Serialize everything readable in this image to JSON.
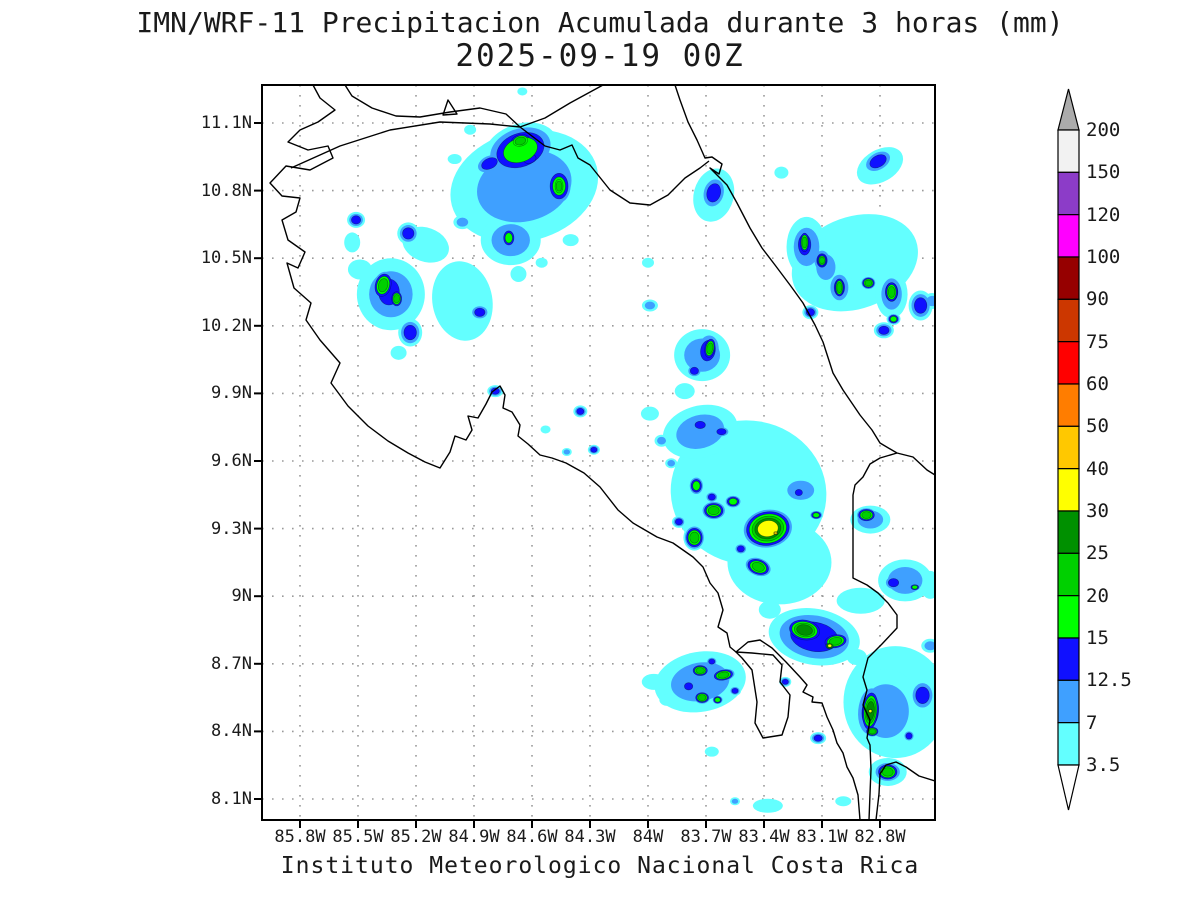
{
  "title": {
    "line1": "IMN/WRF-11 Precipitacion Acumulada durante 3 horas (mm)",
    "line2": "2025-09-19 00Z"
  },
  "footer": "Instituto Meteorologico Nacional Costa Rica",
  "axes": {
    "lat_ticks": [
      "11.1N",
      "10.8N",
      "10.5N",
      "10.2N",
      "9.9N",
      "9.6N",
      "9.3N",
      "9N",
      "8.7N",
      "8.4N",
      "8.1N"
    ],
    "lon_ticks": [
      "85.8W",
      "85.5W",
      "85.2W",
      "84.9W",
      "84.6W",
      "84.3W",
      "84W",
      "83.7W",
      "83.4W",
      "83.1W",
      "82.8W"
    ]
  },
  "colorbar": {
    "labels_top_to_bottom": [
      "200",
      "150",
      "120",
      "100",
      "90",
      "75",
      "60",
      "50",
      "40",
      "30",
      "25",
      "20",
      "15",
      "12.5",
      "7",
      "3.5"
    ],
    "box_colors_top_to_bottom": [
      "#F2F2F2",
      "#8C3CC8",
      "#FF00FF",
      "#960000",
      "#CC3700",
      "#FF0000",
      "#FF7D00",
      "#FFC800",
      "#FFFF00",
      "#009000",
      "#00D000",
      "#00FF00",
      "#1010FF",
      "#3FA0FF",
      "#63FFFF"
    ],
    "arrow_top_color": "#ABABAB",
    "arrow_bottom_color": "#FFFFFF"
  },
  "chart_data": {
    "type": "heatmap",
    "title": "IMN/WRF-11 Precipitacion Acumulada durante 3 horas (mm)",
    "subtitle": "2025-09-19 00Z",
    "units": "mm per 3 h",
    "region": "Costa Rica",
    "lon_axis_deg_west": [
      85.8,
      82.8
    ],
    "lat_axis_deg_north": [
      8.1,
      11.1
    ],
    "grid": true,
    "legend_position": "right",
    "legend_levels_mm": [
      3.5,
      7,
      12.5,
      15,
      20,
      25,
      30,
      40,
      50,
      60,
      75,
      90,
      100,
      120,
      150,
      200
    ],
    "level_colors": {
      "3.5": "#63FFFF",
      "7": "#3FA0FF",
      "12.5": "#1010FF",
      "15": "#00FF00",
      "20": "#00D000",
      "25": "#009000",
      "30": "#FFFF00",
      "40": "#FFC800",
      "50": "#FF7D00",
      "60": "#FF0000",
      "75": "#CC3700",
      "90": "#960000",
      "100": "#FF00FF",
      "120": "#8C3CC8",
      "150": "#F2F2F2"
    },
    "cells": [
      [
        84.64,
        10.82,
        7,
        75,
        55,
        -15
      ],
      [
        84.66,
        10.98,
        15,
        38,
        26,
        -20
      ],
      [
        84.66,
        11.02,
        20,
        13,
        9,
        -15
      ],
      [
        84.82,
        10.92,
        12.5,
        16,
        10,
        -25
      ],
      [
        84.61,
        10.94,
        12.5,
        12,
        8,
        -20
      ],
      [
        84.46,
        10.82,
        15,
        14,
        20,
        0
      ],
      [
        84.46,
        10.82,
        20,
        7,
        12,
        0
      ],
      [
        84.71,
        10.58,
        7,
        30,
        25,
        0
      ],
      [
        84.72,
        10.59,
        15,
        8,
        11,
        0
      ],
      [
        84.96,
        10.31,
        3.5,
        40,
        30,
        80
      ],
      [
        85.15,
        10.56,
        3.5,
        24,
        17,
        20
      ],
      [
        85.24,
        10.61,
        12.5,
        11,
        11,
        0
      ],
      [
        84.96,
        10.66,
        7,
        9,
        7,
        0
      ],
      [
        84.4,
        10.58,
        3.5,
        8,
        6,
        0
      ],
      [
        84.67,
        10.43,
        3.5,
        8,
        8,
        0
      ],
      [
        84.55,
        10.48,
        3.5,
        6,
        5,
        0
      ],
      [
        85.0,
        10.94,
        3.5,
        7,
        5,
        0
      ],
      [
        84.92,
        11.07,
        3.5,
        6,
        5,
        0
      ],
      [
        83.31,
        10.88,
        3.5,
        7,
        6,
        0
      ],
      [
        84.65,
        11.24,
        3.5,
        5,
        4,
        0
      ],
      [
        85.33,
        10.34,
        7,
        34,
        36,
        0
      ],
      [
        85.34,
        10.35,
        12.5,
        20,
        25,
        0
      ],
      [
        85.37,
        10.38,
        20,
        11,
        16,
        15
      ],
      [
        85.3,
        10.32,
        20,
        7,
        10,
        0
      ],
      [
        85.49,
        10.45,
        3.5,
        12,
        10,
        0
      ],
      [
        85.23,
        10.17,
        12.5,
        12,
        14,
        0
      ],
      [
        85.29,
        10.08,
        3.5,
        8,
        7,
        0
      ],
      [
        85.51,
        10.67,
        12.5,
        9,
        8,
        0
      ],
      [
        85.53,
        10.57,
        3.5,
        8,
        10,
        0
      ],
      [
        84.87,
        10.26,
        12.5,
        10,
        8,
        0
      ],
      [
        84.79,
        9.91,
        12.5,
        8,
        6,
        0
      ],
      [
        83.66,
        10.79,
        12.5,
        13,
        18,
        15
      ],
      [
        83.66,
        10.78,
        3.5,
        20,
        27,
        15
      ],
      [
        82.81,
        10.93,
        12.5,
        17,
        11,
        -30
      ],
      [
        82.8,
        10.91,
        3.5,
        25,
        16,
        -30
      ],
      [
        82.93,
        10.48,
        3.5,
        65,
        46,
        -20
      ],
      [
        83.18,
        10.55,
        7,
        20,
        30,
        0
      ],
      [
        83.19,
        10.56,
        12.5,
        12,
        20,
        0
      ],
      [
        83.19,
        10.57,
        20,
        6,
        13,
        0
      ],
      [
        83.08,
        10.46,
        7,
        15,
        20,
        0
      ],
      [
        83.1,
        10.49,
        12.5,
        10,
        13,
        0
      ],
      [
        83.1,
        10.49,
        20,
        6,
        8,
        0
      ],
      [
        83.01,
        10.37,
        7,
        14,
        20,
        0
      ],
      [
        83.01,
        10.37,
        12.5,
        10,
        16,
        0
      ],
      [
        83.01,
        10.37,
        20,
        6,
        12,
        0
      ],
      [
        82.86,
        10.39,
        20,
        8,
        7,
        0
      ],
      [
        82.74,
        10.34,
        7,
        16,
        24,
        0
      ],
      [
        82.74,
        10.35,
        12.5,
        12,
        18,
        0
      ],
      [
        82.74,
        10.35,
        20,
        8,
        13,
        0
      ],
      [
        82.73,
        10.23,
        15,
        7,
        6,
        0
      ],
      [
        83.16,
        10.26,
        12.5,
        8,
        7,
        0
      ],
      [
        82.91,
        10.65,
        3.5,
        9,
        7,
        0
      ],
      [
        82.78,
        10.18,
        12.5,
        10,
        8,
        0
      ],
      [
        82.53,
        10.31,
        7,
        9,
        8,
        0
      ],
      [
        82.59,
        10.29,
        12.5,
        12,
        15,
        0
      ],
      [
        83.72,
        10.07,
        7,
        28,
        26,
        0
      ],
      [
        83.69,
        10.09,
        12.5,
        14,
        20,
        10
      ],
      [
        83.68,
        10.1,
        20,
        7,
        13,
        10
      ],
      [
        83.76,
        10.0,
        12.5,
        8,
        7,
        0
      ],
      [
        83.81,
        9.91,
        3.5,
        10,
        8,
        0
      ],
      [
        83.99,
        10.29,
        7,
        8,
        6,
        0
      ],
      [
        84.0,
        10.48,
        3.5,
        6,
        5,
        0
      ],
      [
        84.35,
        9.82,
        12.5,
        7,
        6,
        0
      ],
      [
        84.28,
        9.65,
        12.5,
        6,
        5,
        0
      ],
      [
        84.42,
        9.64,
        7,
        5,
        4,
        0
      ],
      [
        84.53,
        9.74,
        3.5,
        5,
        4,
        0
      ],
      [
        83.48,
        9.46,
        3.5,
        78,
        72,
        10
      ],
      [
        83.73,
        9.73,
        7,
        38,
        26,
        -15
      ],
      [
        83.73,
        9.76,
        12.5,
        10,
        7,
        0
      ],
      [
        83.62,
        9.73,
        12.5,
        9,
        6,
        0
      ],
      [
        83.38,
        9.3,
        30,
        27,
        21,
        -10
      ],
      [
        83.34,
        9.28,
        40,
        4,
        3,
        0
      ],
      [
        83.66,
        9.38,
        20,
        13,
        10,
        0
      ],
      [
        83.75,
        9.49,
        15,
        8,
        10,
        0
      ],
      [
        83.76,
        9.26,
        20,
        11,
        13,
        0
      ],
      [
        83.43,
        9.13,
        20,
        15,
        10,
        20
      ],
      [
        83.56,
        9.42,
        15,
        9,
        7,
        0
      ],
      [
        83.67,
        9.44,
        12.5,
        7,
        6,
        0
      ],
      [
        83.52,
        9.21,
        12.5,
        7,
        6,
        0
      ],
      [
        83.84,
        9.33,
        12.5,
        7,
        6,
        0
      ],
      [
        83.93,
        9.69,
        7,
        7,
        6,
        0
      ],
      [
        83.88,
        9.59,
        7,
        6,
        5,
        0
      ],
      [
        83.99,
        9.81,
        3.5,
        9,
        7,
        0
      ],
      [
        83.21,
        9.47,
        7,
        21,
        15,
        0
      ],
      [
        83.22,
        9.46,
        12.5,
        7,
        6,
        0
      ],
      [
        83.13,
        9.36,
        15,
        7,
        5,
        0
      ],
      [
        82.87,
        9.36,
        20,
        11,
        8,
        0
      ],
      [
        82.85,
        9.34,
        7,
        20,
        14,
        0
      ],
      [
        82.67,
        9.07,
        7,
        27,
        21,
        0
      ],
      [
        82.73,
        9.06,
        12.5,
        10,
        8,
        0
      ],
      [
        82.62,
        9.04,
        15,
        6,
        4,
        0
      ],
      [
        83.32,
        9.15,
        3.5,
        52,
        42,
        0
      ],
      [
        83.14,
        8.82,
        12.5,
        46,
        28,
        10
      ],
      [
        83.19,
        8.85,
        25,
        20,
        13,
        10
      ],
      [
        83.03,
        8.8,
        20,
        15,
        9,
        -10
      ],
      [
        83.06,
        8.78,
        30,
        5,
        4,
        0
      ],
      [
        83.37,
        8.94,
        3.5,
        11,
        9,
        0
      ],
      [
        82.92,
        8.73,
        3.5,
        10,
        8,
        0
      ],
      [
        83.73,
        8.62,
        7,
        46,
        30,
        -10
      ],
      [
        83.73,
        8.67,
        20,
        10,
        7,
        0
      ],
      [
        83.61,
        8.65,
        20,
        13,
        7,
        -10
      ],
      [
        83.72,
        8.55,
        20,
        9,
        7,
        0
      ],
      [
        83.64,
        8.54,
        15,
        6,
        5,
        0
      ],
      [
        83.79,
        8.6,
        12.5,
        8,
        7,
        0
      ],
      [
        83.55,
        8.58,
        12.5,
        6,
        5,
        0
      ],
      [
        83.67,
        8.71,
        12.5,
        6,
        5,
        0
      ],
      [
        83.97,
        8.62,
        3.5,
        12,
        8,
        0
      ],
      [
        83.9,
        8.54,
        3.5,
        8,
        6,
        0
      ],
      [
        83.29,
        8.62,
        12.5,
        6,
        5,
        0
      ],
      [
        83.12,
        8.37,
        12.5,
        8,
        6,
        0
      ],
      [
        83.67,
        8.31,
        3.5,
        7,
        5,
        0
      ],
      [
        82.72,
        8.53,
        3.5,
        52,
        56,
        0
      ],
      [
        82.77,
        8.49,
        7,
        36,
        42,
        0
      ],
      [
        82.85,
        8.49,
        12.5,
        16,
        30,
        5
      ],
      [
        82.85,
        8.49,
        25,
        10,
        24,
        5
      ],
      [
        82.85,
        8.49,
        30,
        4,
        4,
        0
      ],
      [
        82.84,
        8.4,
        20,
        8,
        6,
        0
      ],
      [
        82.76,
        8.22,
        7,
        19,
        14,
        0
      ],
      [
        82.76,
        8.22,
        20,
        13,
        10,
        0
      ],
      [
        82.65,
        8.38,
        12.5,
        6,
        6,
        0
      ],
      [
        82.58,
        8.56,
        12.5,
        13,
        16,
        0
      ],
      [
        82.54,
        8.78,
        7,
        9,
        7,
        0
      ],
      [
        82.9,
        8.98,
        3.5,
        24,
        13,
        0
      ],
      [
        82.54,
        9.05,
        3.5,
        10,
        14,
        0
      ],
      [
        82.99,
        8.09,
        3.5,
        8,
        5,
        0
      ],
      [
        83.38,
        8.07,
        3.5,
        15,
        7,
        0
      ],
      [
        83.55,
        8.09,
        7,
        5,
        4,
        0
      ]
    ],
    "cell_fields": [
      "lon_deg_west",
      "lat_deg_north",
      "max_mm",
      "rx_px",
      "ry_px",
      "rotation_deg"
    ]
  }
}
